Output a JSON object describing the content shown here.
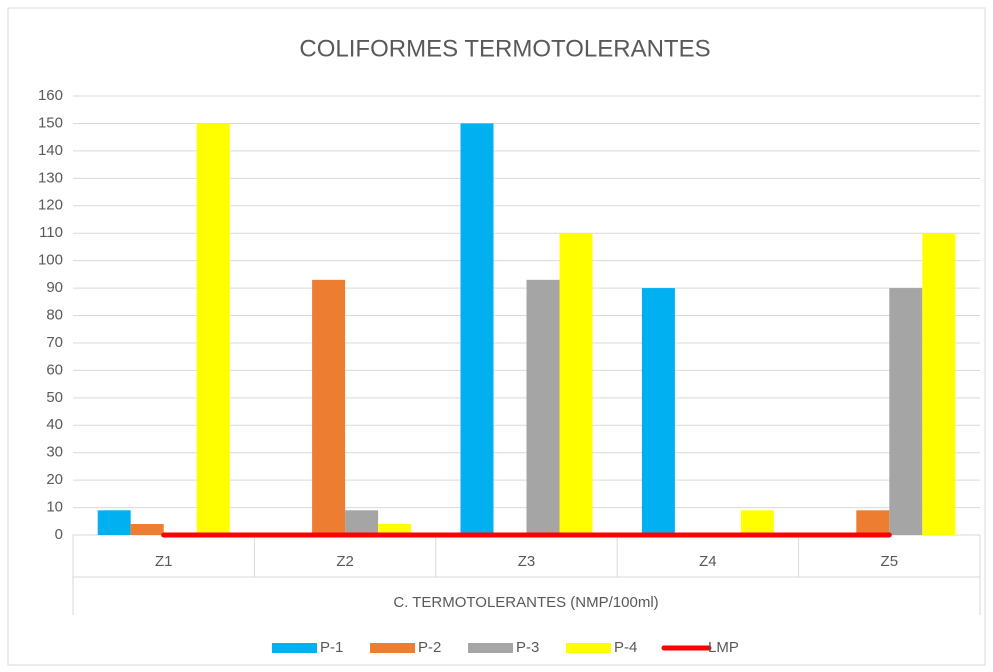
{
  "chart_data": {
    "type": "bar",
    "title": "COLIFORMES TERMOTOLERANTES",
    "x_label": "C. TERMOTOLERANTES (NMP/100ml)",
    "categories": [
      "Z1",
      "Z2",
      "Z3",
      "Z4",
      "Z5"
    ],
    "series": [
      {
        "name": "P-1",
        "color": "#00b0f0",
        "values": [
          9,
          0,
          150,
          90,
          0
        ]
      },
      {
        "name": "P-2",
        "color": "#ed7d31",
        "values": [
          4,
          93,
          0,
          0,
          9
        ]
      },
      {
        "name": "P-3",
        "color": "#a5a5a5",
        "values": [
          0,
          9,
          93,
          0,
          90
        ]
      },
      {
        "name": "P-4",
        "color": "#ffff00",
        "values": [
          150,
          4,
          110,
          9,
          110
        ]
      },
      {
        "name": "LMP",
        "color": "#ff0000",
        "type": "line",
        "values": [
          0,
          0,
          0,
          0,
          0
        ]
      }
    ],
    "ylim": [
      0,
      160
    ],
    "yticks": [
      0,
      10,
      20,
      30,
      40,
      50,
      60,
      70,
      80,
      90,
      100,
      110,
      120,
      130,
      140,
      150,
      160
    ],
    "grid": true,
    "legend": "bottom"
  }
}
